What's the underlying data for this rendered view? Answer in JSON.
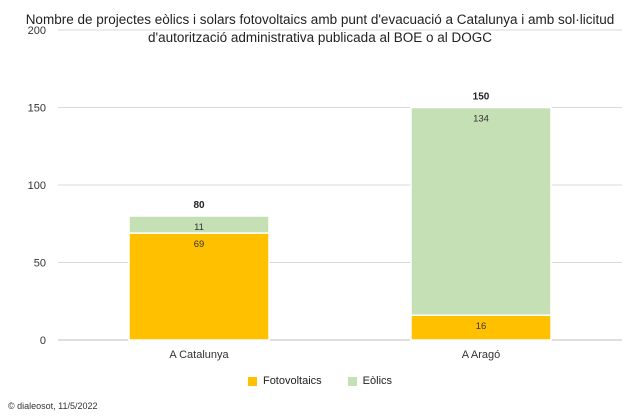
{
  "title_line1": "Nombre de projectes eòlics i solars fotovoltaics amb punt d'evacuació a Catalunya i amb sol·licitud",
  "title_line2": "d'autorització administrativa publicada al BOE o al DOGC",
  "credit": "© dialeosot, 11/5/2022",
  "chart_data": {
    "type": "bar",
    "stacked": true,
    "categories": [
      "A Catalunya",
      "A Aragó"
    ],
    "series": [
      {
        "name": "Fotovoltaics",
        "values": [
          69,
          16
        ],
        "color": "#FFC000"
      },
      {
        "name": "Eòlics",
        "values": [
          11,
          134
        ],
        "color": "#C5E0B4"
      }
    ],
    "totals": [
      "80",
      "150"
    ],
    "ylim": [
      0,
      200
    ],
    "yticks": [
      "0",
      "50",
      "100",
      "150",
      "200"
    ],
    "grid": true,
    "legend_position": "bottom"
  }
}
